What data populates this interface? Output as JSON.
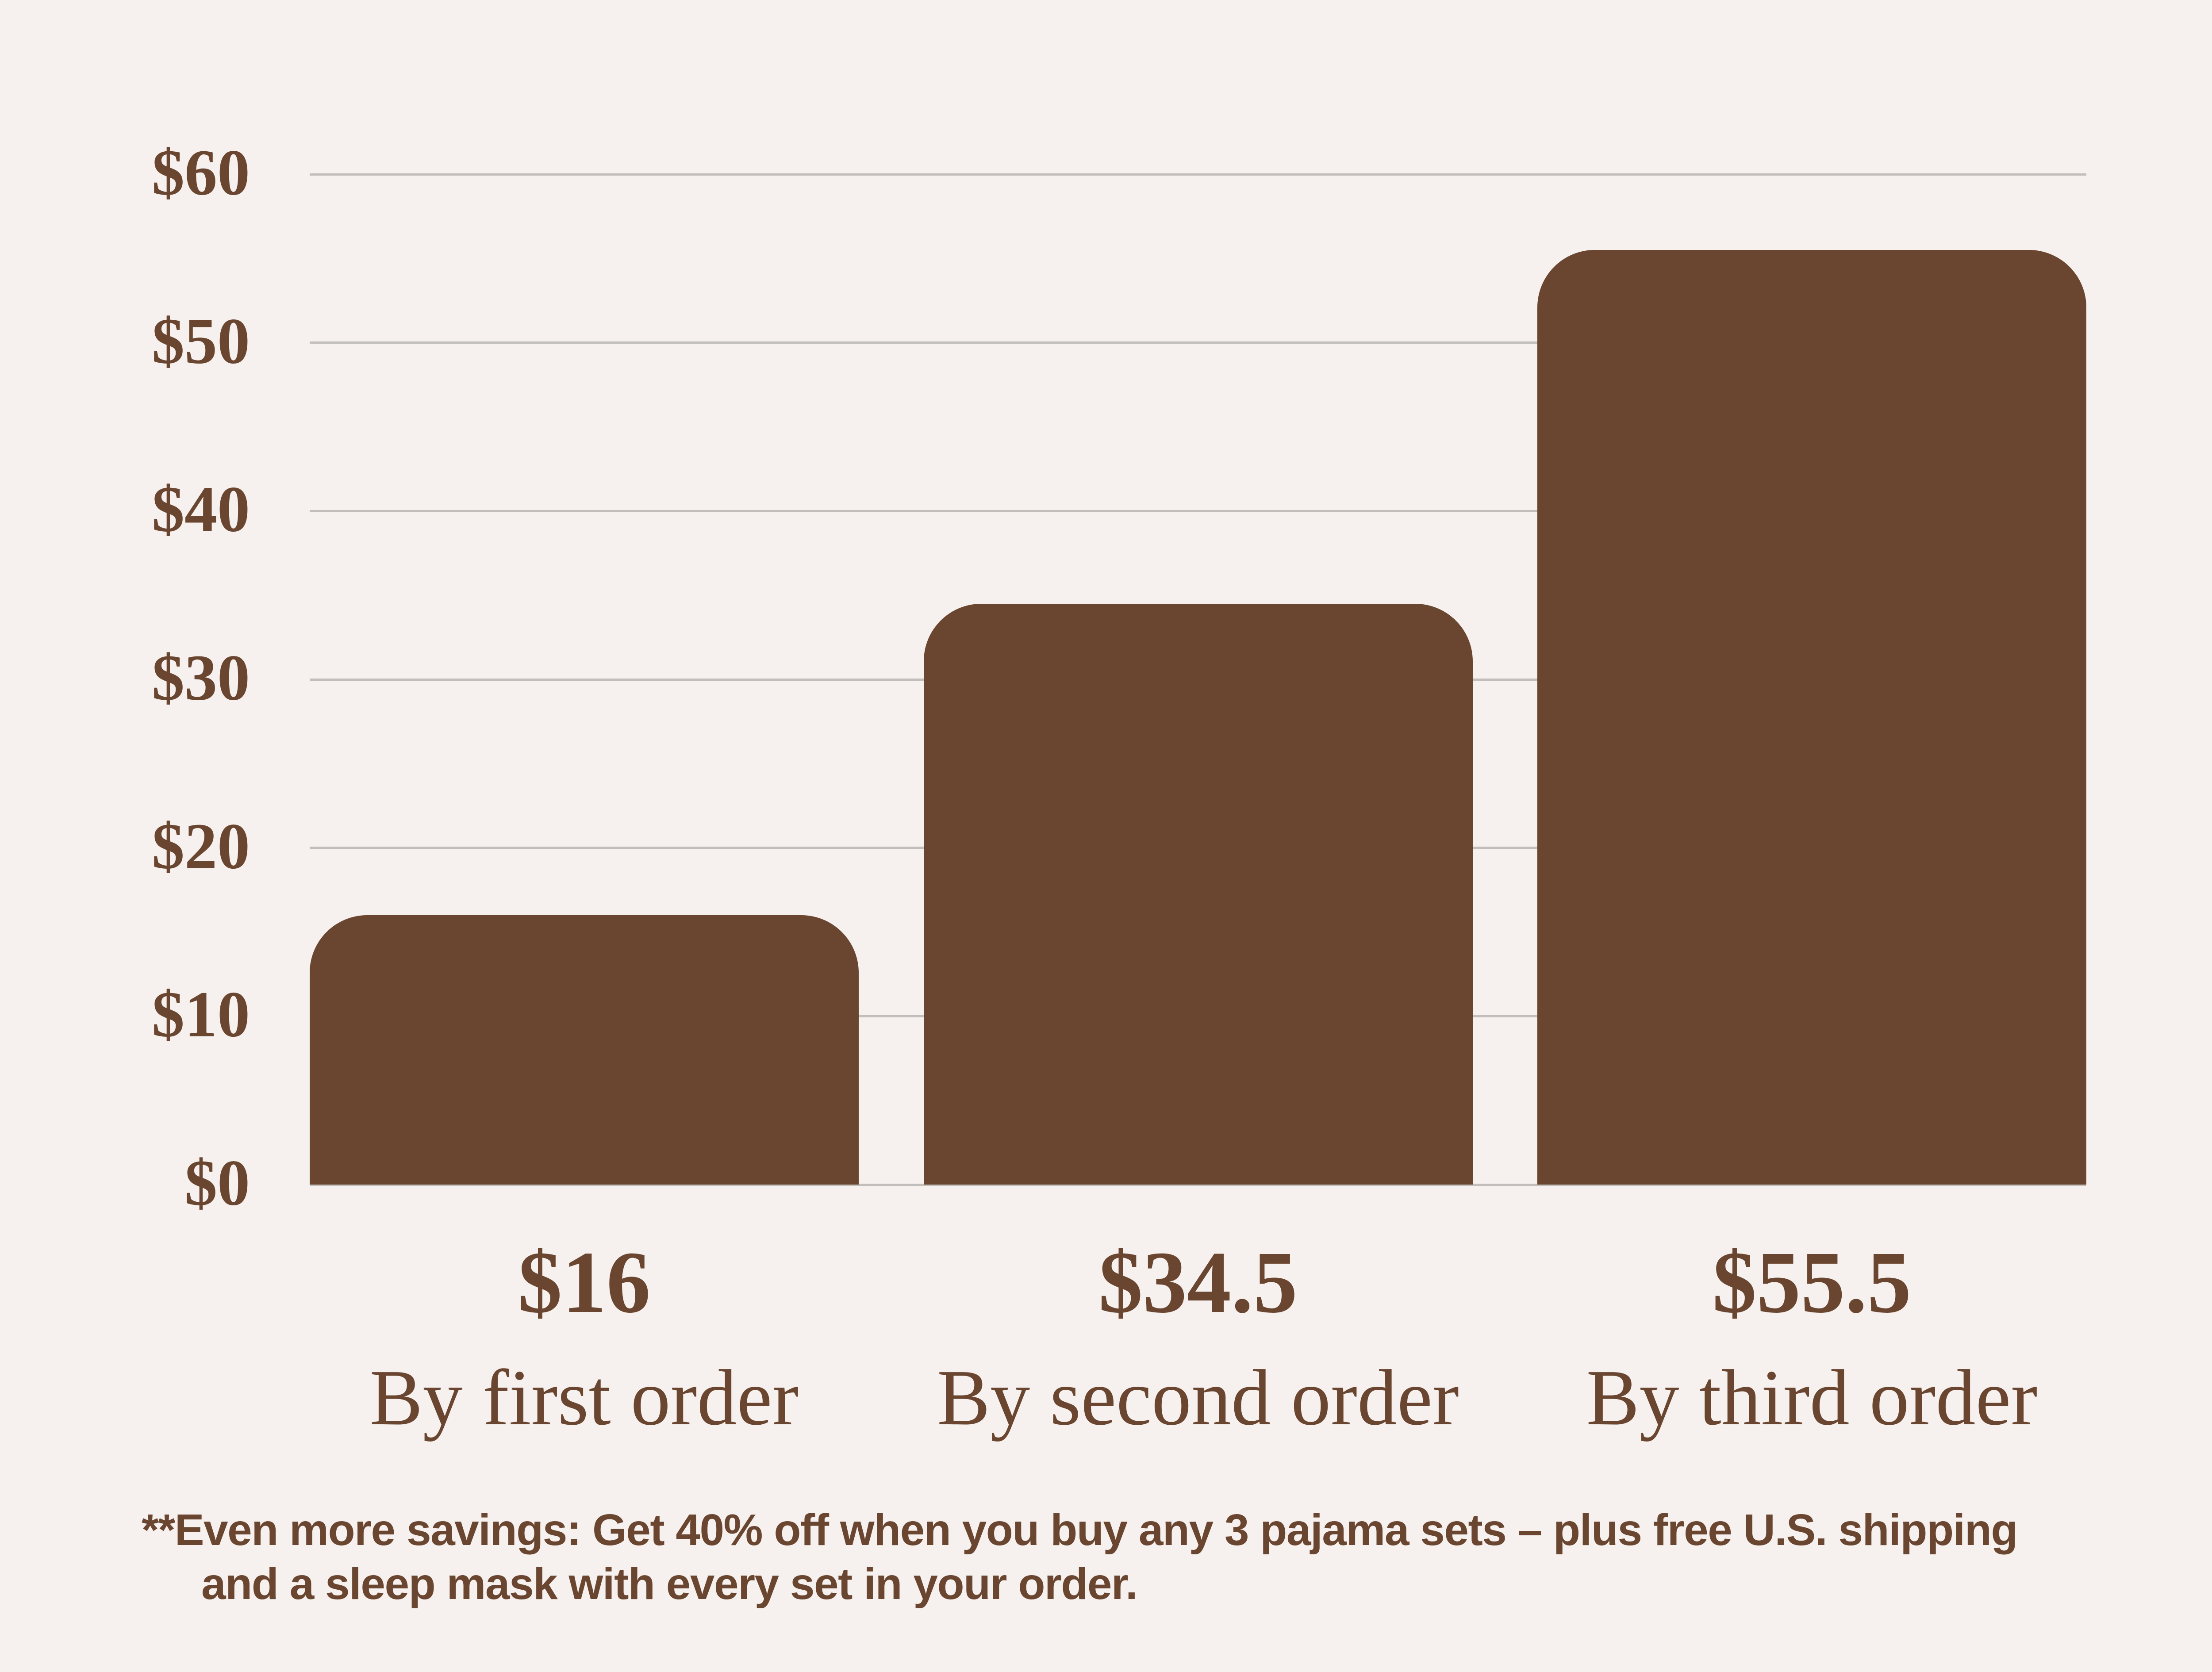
{
  "chart_data": {
    "type": "bar",
    "title": "",
    "xlabel": "",
    "ylabel": "",
    "categories": [
      "By first order",
      "By second order",
      "By third order"
    ],
    "values": [
      16,
      34.5,
      55.5
    ],
    "value_labels": [
      "$16",
      "$34.5",
      "$55.5"
    ],
    "y_axis": {
      "min": 0,
      "max": 60,
      "ticks": [
        {
          "label": "$60",
          "value": 60
        },
        {
          "label": "$50",
          "value": 50
        },
        {
          "label": "$40",
          "value": 40
        },
        {
          "label": "$30",
          "value": 30
        },
        {
          "label": "$20",
          "value": 20
        },
        {
          "label": "$10",
          "value": 10
        },
        {
          "label": "$0",
          "value": 0
        }
      ]
    },
    "grid": "horizontal",
    "legend": "none"
  },
  "footnote": {
    "marker": "**",
    "line1": "Even more savings: Get 40% off when you buy any 3 pajama sets – plus free U.S. shipping",
    "line2": "and a sleep mask with every set in your order."
  },
  "colors": {
    "background": "#F6F1EE",
    "bar": "#6A4630",
    "text": "#6A4631",
    "gridline": "#C2BEBB"
  }
}
